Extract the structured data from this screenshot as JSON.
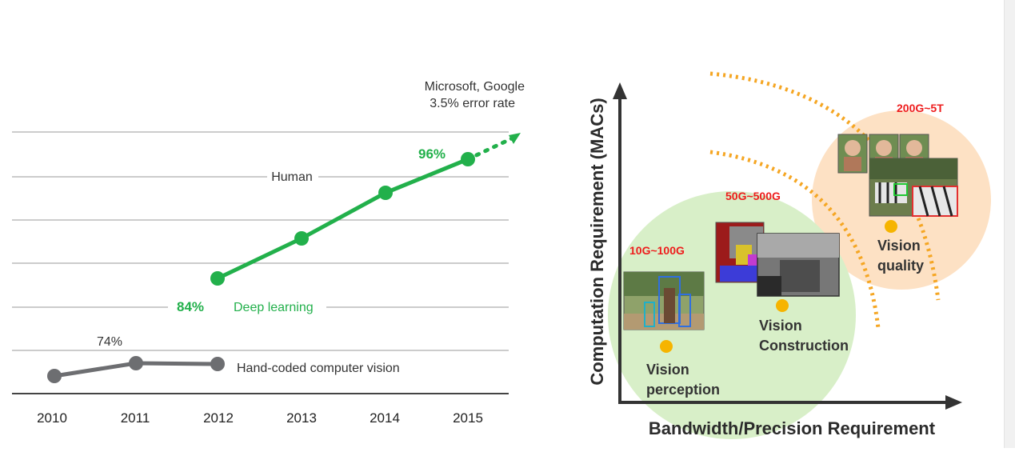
{
  "left_chart": {
    "annotation_line1": "Microsoft, Google",
    "annotation_line2": "3.5% error rate",
    "human_label": "Human",
    "deep_learning_label": "Deep learning",
    "hand_coded_label": "Hand-coded computer vision",
    "deep_learning_start_pct": "84%",
    "deep_learning_end_pct": "96%",
    "hand_coded_pct": "74%",
    "x_ticks": [
      "2010",
      "2011",
      "2012",
      "2013",
      "2014",
      "2015"
    ],
    "colors": {
      "deep_learning": "#22b04b",
      "hand_coded": "#6d6e71",
      "grid": "#9a9a9a"
    }
  },
  "right_diagram": {
    "y_axis_title": "Computation Requirement (MACs)",
    "x_axis_title": "Bandwidth/Precision Requirement",
    "stages": [
      {
        "id": "perception",
        "label_line1": "Vision",
        "label_line2": "perception",
        "macs": "10G~100G"
      },
      {
        "id": "construction",
        "label_line1": "Vision",
        "label_line2": "Construction",
        "macs": "50G~500G"
      },
      {
        "id": "quality",
        "label_line1": "Vision",
        "label_line2": "quality",
        "macs": "200G~5T"
      }
    ],
    "colors": {
      "green_circle": "#d8efc8",
      "orange_circle": "#fde1c4",
      "dot": "#f6b400",
      "dashed_arc": "#f5a623",
      "macs_text": "#ee1c1c"
    }
  }
}
